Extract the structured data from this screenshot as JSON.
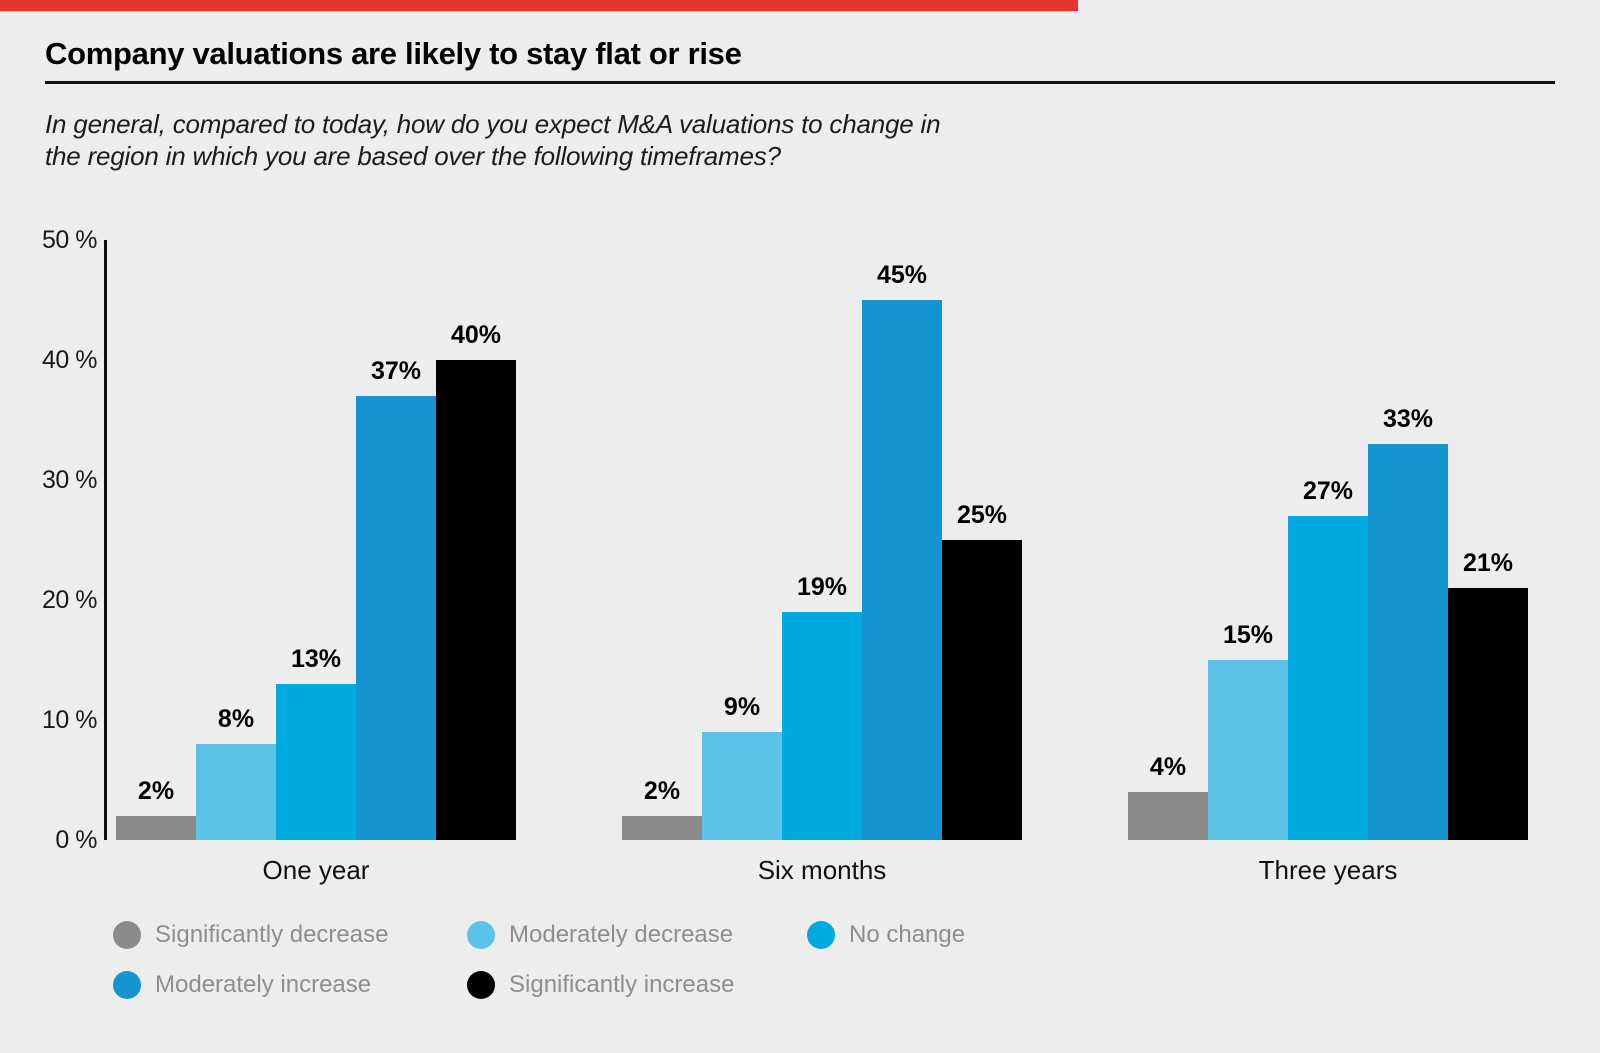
{
  "page": {
    "background_color": "#ededed",
    "accent_bar_color": "#e5332d"
  },
  "header": {
    "title": "Company valuations are likely to stay flat or rise",
    "subtitle_line1": "In general, compared to today, how do you expect M&A valuations to change in",
    "subtitle_line2": "the region in which you are based over the following timeframes?"
  },
  "chart_data": {
    "type": "bar",
    "title": "Company valuations are likely to stay flat or rise",
    "question": "In general, compared to today, how do you expect M&A valuations to change in the region in which you are based over the following timeframes?",
    "categories": [
      "One year",
      "Six months",
      "Three years"
    ],
    "series": [
      {
        "name": "Significantly decrease",
        "color": "#8a8a8a",
        "values": [
          2,
          2,
          4
        ]
      },
      {
        "name": "Moderately decrease",
        "color": "#5bc2e8",
        "values": [
          8,
          9,
          15
        ]
      },
      {
        "name": "No change",
        "color": "#00a9e0",
        "values": [
          13,
          19,
          27
        ]
      },
      {
        "name": "Moderately increase",
        "color": "#1495d1",
        "values": [
          37,
          45,
          33
        ]
      },
      {
        "name": "Significantly increase",
        "color": "#000000",
        "values": [
          40,
          25,
          21
        ]
      }
    ],
    "value_label_suffix": "%",
    "y_axis": {
      "tick_labels": [
        "0 %",
        "10 %",
        "20 %",
        "30 %",
        "40 %",
        "50 %"
      ],
      "tick_values": [
        0,
        10,
        20,
        30,
        40,
        50
      ],
      "ylim": [
        0,
        50
      ],
      "grid": false
    },
    "legend": {
      "position": "bottom",
      "rows": [
        [
          "Significantly decrease",
          "Moderately decrease",
          "No change"
        ],
        [
          "Moderately increase",
          "Significantly increase"
        ]
      ],
      "text_color": "#8e8e8e"
    }
  }
}
